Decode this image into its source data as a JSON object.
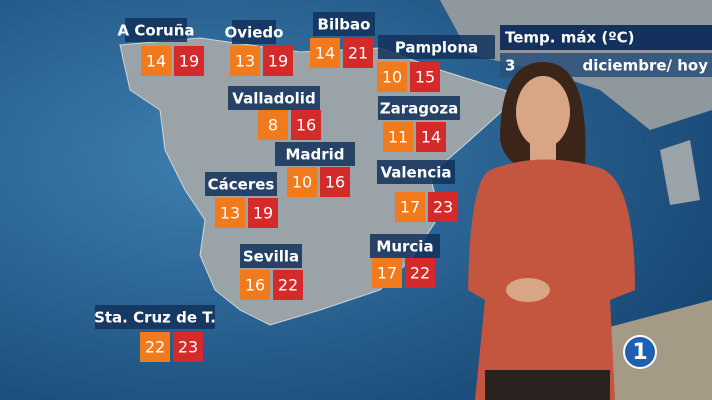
{
  "legend": {
    "title": "Temp. máx (ºC)",
    "date_start": "3",
    "date_end": "diciembre/ hoy"
  },
  "cities": [
    {
      "name": "A Coruña",
      "min": 14,
      "max": 19
    },
    {
      "name": "Oviedo",
      "min": 13,
      "max": 19
    },
    {
      "name": "Bilbao",
      "min": 14,
      "max": 21
    },
    {
      "name": "Pamplona",
      "min": 10,
      "max": 15
    },
    {
      "name": "Valladolid",
      "min": 8,
      "max": 16
    },
    {
      "name": "Zaragoza",
      "min": 11,
      "max": 14
    },
    {
      "name": "Madrid",
      "min": 10,
      "max": 16
    },
    {
      "name": "Cáceres",
      "min": 13,
      "max": 19
    },
    {
      "name": "Valencia",
      "min": 17,
      "max": 23
    },
    {
      "name": "Sevilla",
      "min": 16,
      "max": 22
    },
    {
      "name": "Murcia",
      "min": 17,
      "max": 22
    },
    {
      "name": "Sta. Cruz de T.",
      "min": 22,
      "max": 23
    }
  ],
  "channel_logo": "1"
}
